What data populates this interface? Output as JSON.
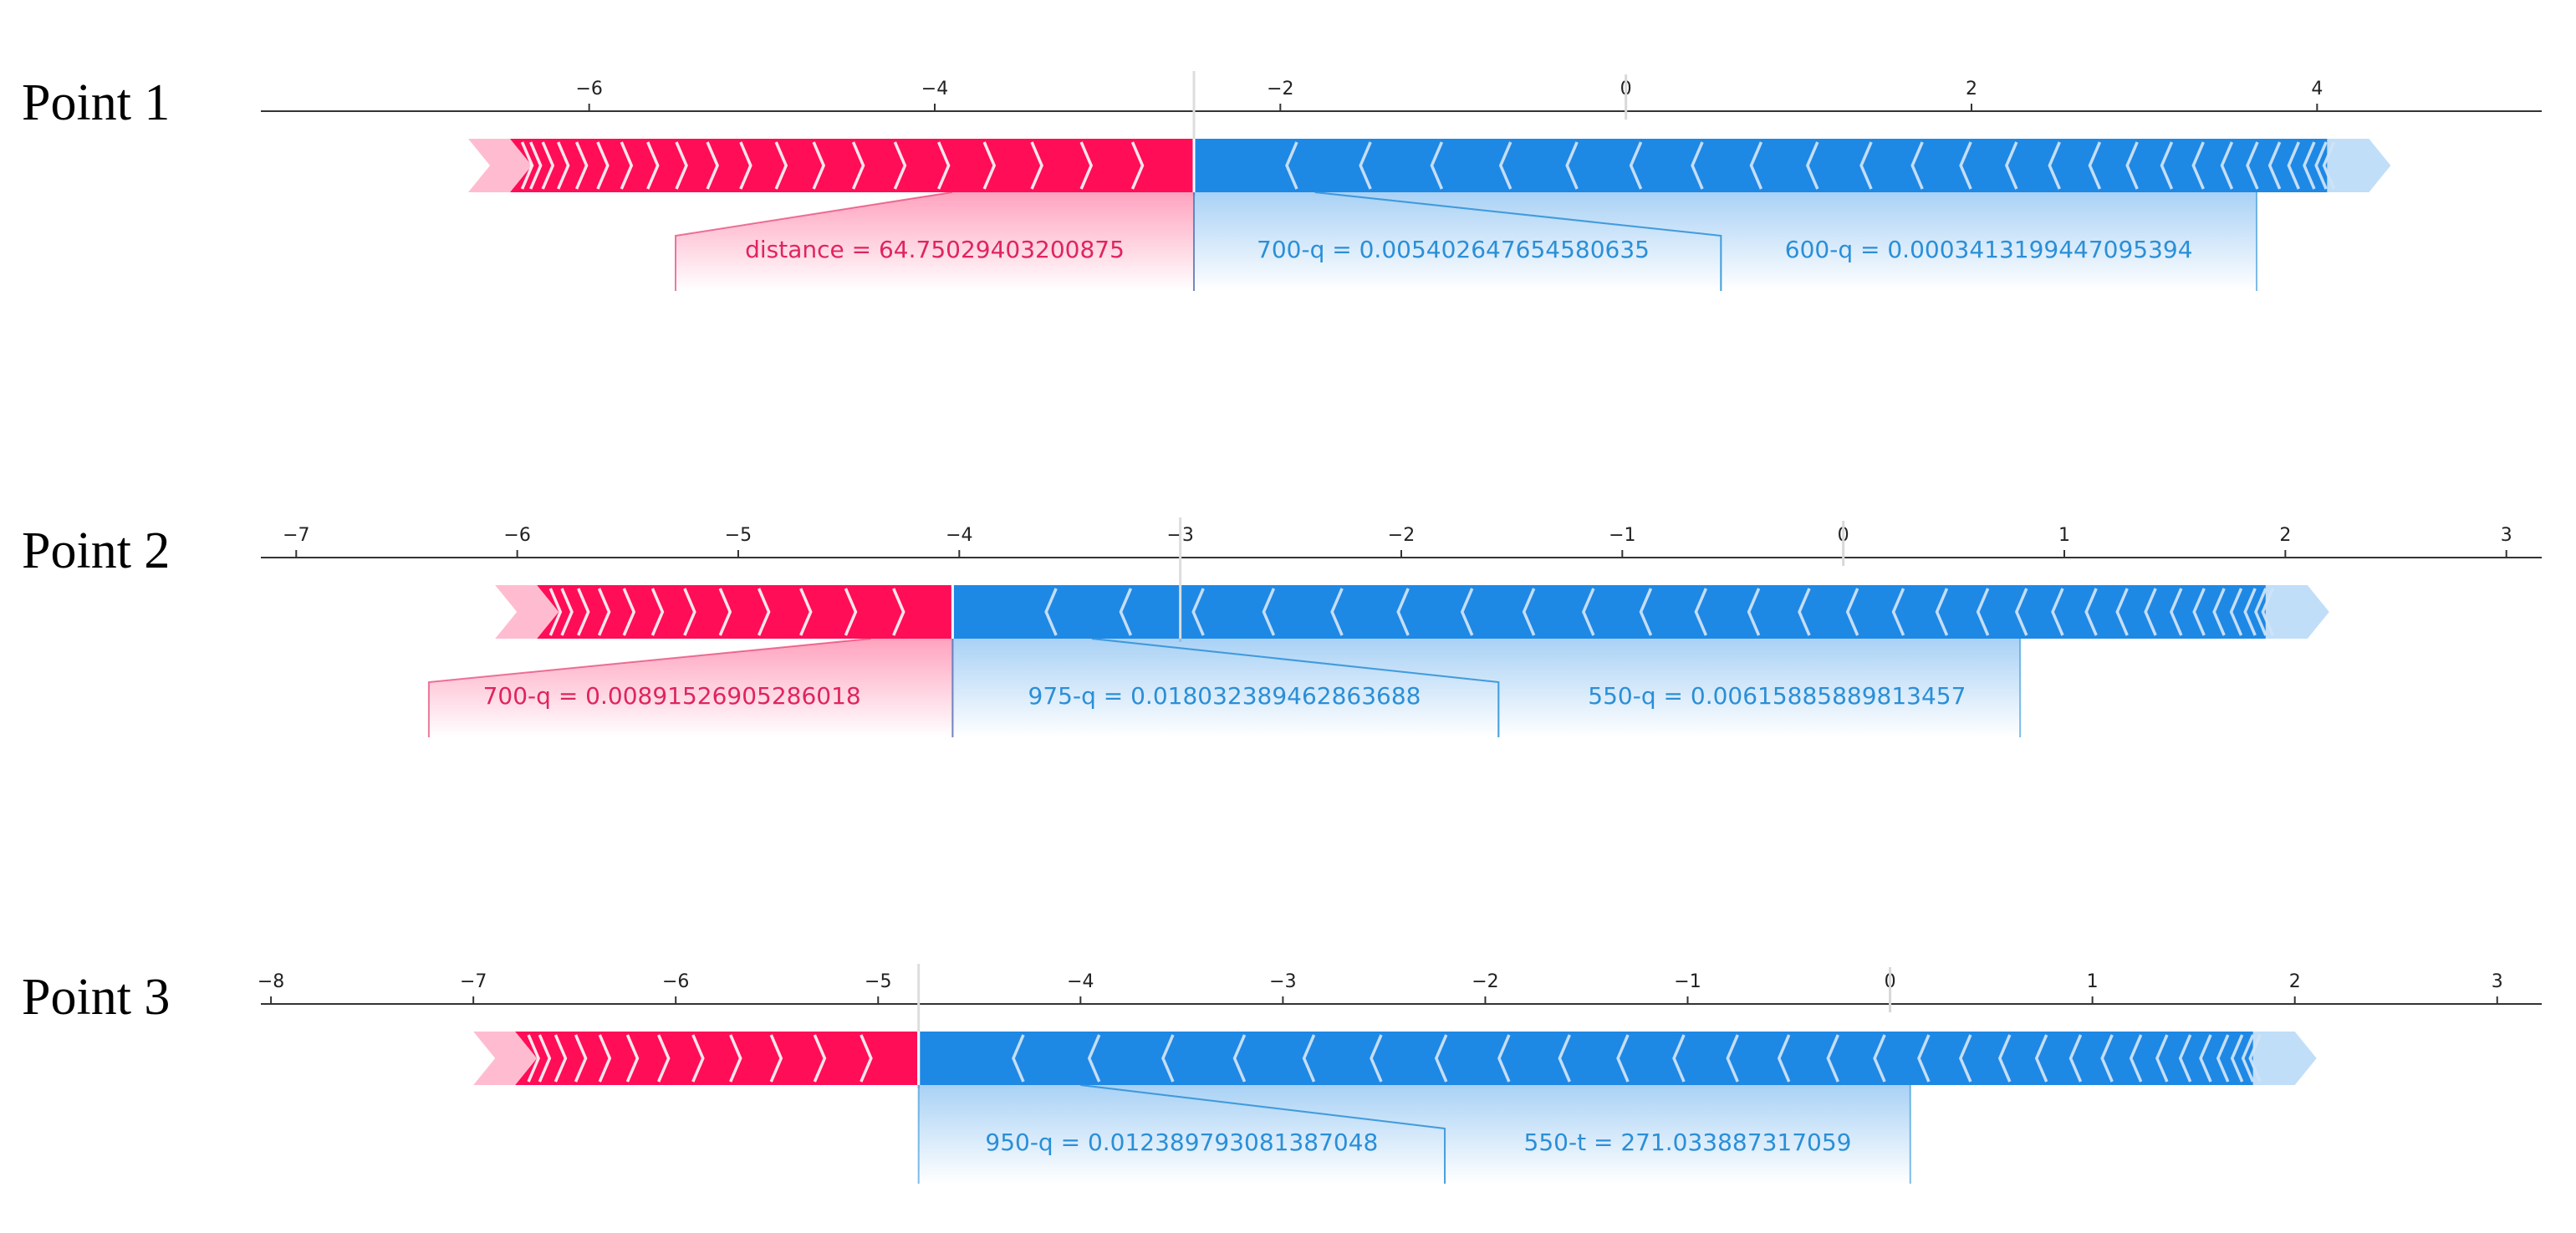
{
  "chart_data": [
    {
      "type": "force",
      "title": "Point 1",
      "axis_ticks": [
        -6,
        -4,
        -2,
        0,
        2,
        4
      ],
      "axis_range": [
        -7.9,
        5.3
      ],
      "bar_start": -6.7,
      "base_marker": -2.5,
      "positive_end": -2.5,
      "bar_end": 4.3,
      "zero_marker": 0.0,
      "features": [
        {
          "label": "distance = 64.75029403200875",
          "effect": "increase",
          "value_from": -3.9,
          "value_to": -2.5,
          "label_center": -4.0,
          "label_span": [
            -5.5,
            -2.5
          ]
        },
        {
          "label": "700-q = 0.005402647654580635",
          "effect": "decrease",
          "value_from": -2.5,
          "value_to": -1.8,
          "label_center": -1.0,
          "label_span": [
            -2.5,
            0.55
          ]
        },
        {
          "label": "600-q = 0.0003413199447095394",
          "effect": "decrease",
          "value_from": -1.8,
          "value_to": 3.65,
          "label_center": 2.1,
          "label_span": [
            0.55,
            3.65
          ]
        }
      ],
      "colors": {
        "positive": "#ff0d57",
        "negative": "#1e88e5",
        "positive_label": "#e0245e",
        "negative_label": "#2a8fd7"
      }
    },
    {
      "type": "force",
      "title": "Point 2",
      "axis_ticks": [
        -7,
        -6,
        -5,
        -4,
        -3,
        -2,
        -1,
        0,
        1,
        2,
        3
      ],
      "axis_range": [
        -7.16,
        3.16
      ],
      "bar_start": -6.1,
      "base_marker": -3.0,
      "positive_end": -4.03,
      "bar_end": 2.1,
      "zero_marker": 0.0,
      "features": [
        {
          "label": "700-q = 0.00891526905286018",
          "effect": "increase",
          "value_from": -4.4,
          "value_to": -4.03,
          "label_center": -5.3,
          "label_span": [
            -6.4,
            -4.03
          ]
        },
        {
          "label": "975-q = 0.018032389462863688",
          "effect": "decrease",
          "value_from": -4.03,
          "value_to": -3.4,
          "label_center": -2.8,
          "label_span": [
            -4.03,
            -1.56
          ]
        },
        {
          "label": "550-q = 0.00615885889813457",
          "effect": "decrease",
          "value_from": -3.4,
          "value_to": 0.8,
          "label_center": -0.3,
          "label_span": [
            -1.56,
            0.8
          ]
        }
      ],
      "colors": {
        "positive": "#ff0d57",
        "negative": "#1e88e5",
        "positive_label": "#e0245e",
        "negative_label": "#2a8fd7"
      }
    },
    {
      "type": "force",
      "title": "Point 3",
      "axis_ticks": [
        -8,
        -7,
        -6,
        -5,
        -4,
        -3,
        -2,
        -1,
        0,
        1,
        2,
        3
      ],
      "axis_range": [
        -8.05,
        3.22
      ],
      "bar_start": -7.0,
      "base_marker": -4.8,
      "positive_end": -4.8,
      "bar_end": 2.0,
      "zero_marker": 0.0,
      "features": [
        {
          "label": "950-q = 0.012389793081387048",
          "effect": "decrease",
          "value_from": -4.8,
          "value_to": -4.0,
          "label_center": -3.5,
          "label_span": [
            -4.8,
            -2.2
          ]
        },
        {
          "label": "550-t = 271.033887317059",
          "effect": "decrease",
          "value_from": -4.0,
          "value_to": 0.1,
          "label_center": -1.0,
          "label_span": [
            -2.2,
            0.1
          ]
        }
      ],
      "colors": {
        "positive": "#ff0d57",
        "negative": "#1e88e5",
        "positive_label": "#e0245e",
        "negative_label": "#2a8fd7"
      }
    }
  ]
}
